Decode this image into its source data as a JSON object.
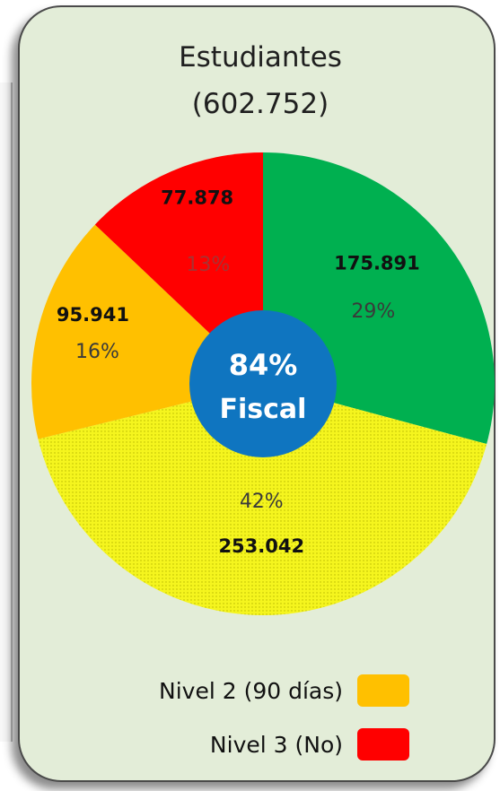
{
  "title": "Estudiantes",
  "subtitle": "(602.752)",
  "center": {
    "percent": "84%",
    "label": "Fiscal"
  },
  "chart_data": {
    "type": "pie",
    "title": "Estudiantes",
    "total": "602.752",
    "slices": [
      {
        "value_label": "175.891",
        "pct_label": "29%",
        "value": 175891,
        "percent": 29,
        "color": "#00b050"
      },
      {
        "value_label": "253.042",
        "pct_label": "42%",
        "value": 253042,
        "percent": 42,
        "color": "#f5f51e"
      },
      {
        "value_label": "95.941",
        "pct_label": "16%",
        "value": 95941,
        "percent": 16,
        "color": "#ffc000"
      },
      {
        "value_label": "77.878",
        "pct_label": "13%",
        "value": 77878,
        "percent": 13,
        "color": "#ff0000"
      }
    ],
    "center_color": "#0f75c0"
  },
  "legend": [
    {
      "label": "Nivel 2 (90 días)",
      "color": "#ffc000"
    },
    {
      "label": "Nivel 3  (No)",
      "color": "#ff0000"
    }
  ]
}
